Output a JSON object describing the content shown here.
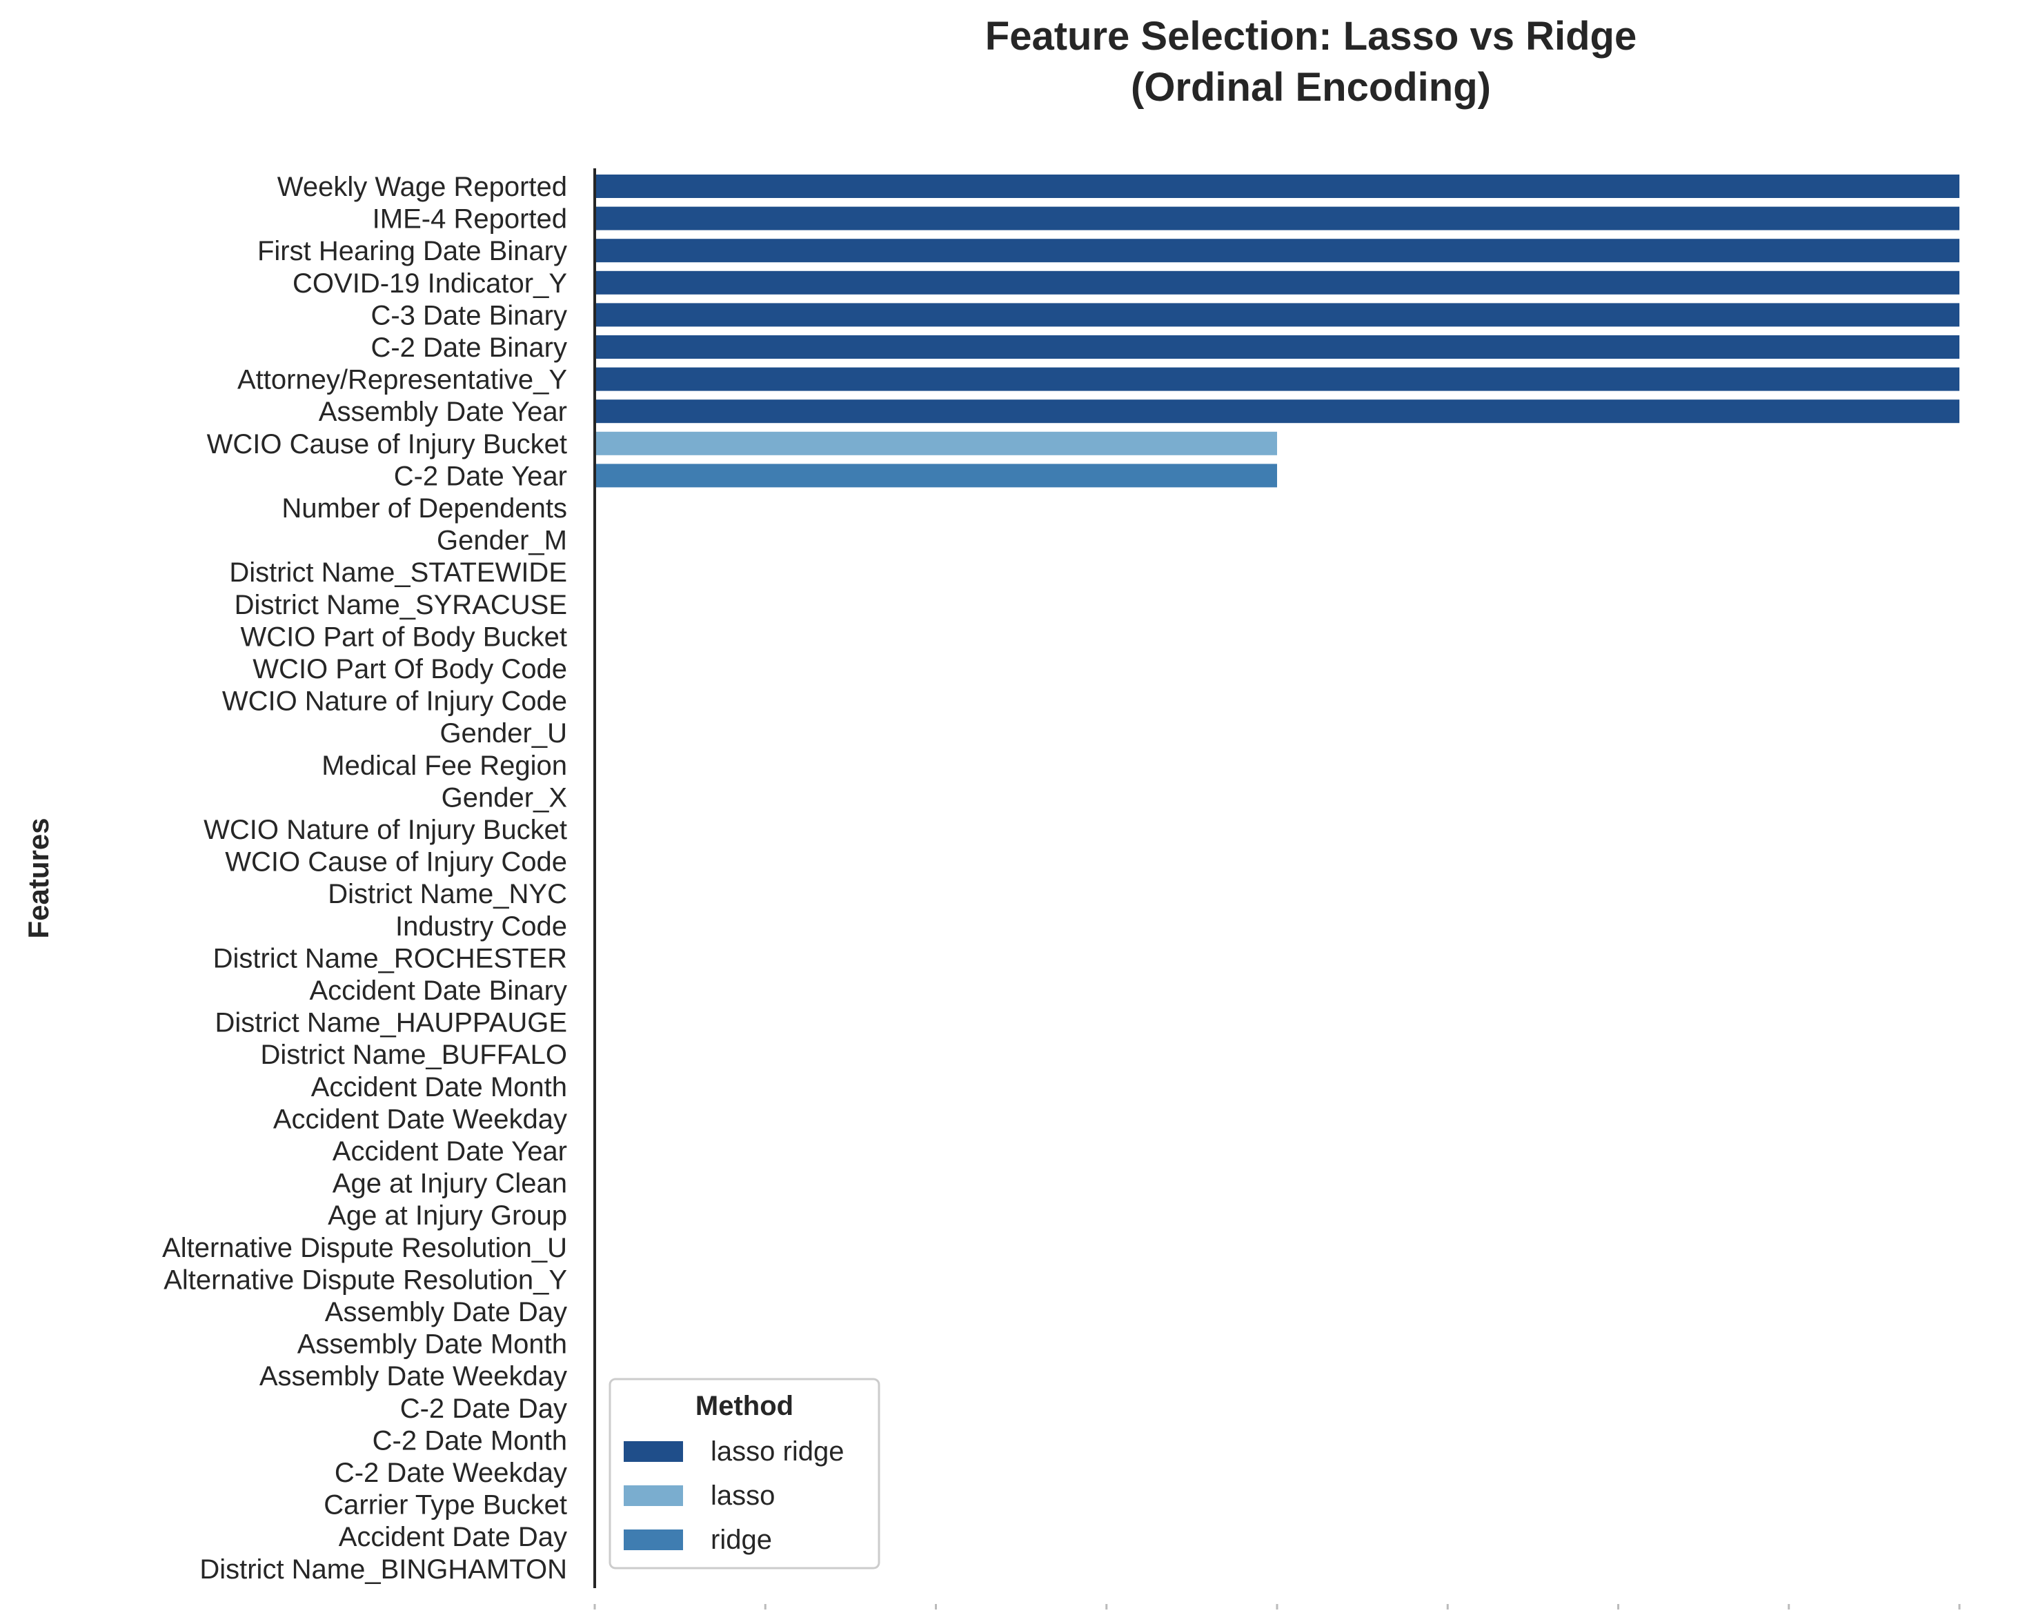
{
  "chart_data": {
    "type": "bar",
    "orientation": "horizontal",
    "title_line1": "Feature Selection: Lasso vs Ridge",
    "title_line2": "(Ordinal Encoding)",
    "xlabel": "",
    "ylabel": "Features",
    "xlim": [
      0,
      2
    ],
    "grid": false,
    "legend_placement": "lower-left",
    "legend_title": "Method",
    "series_colors": {
      "lasso ridge": "#1f4e8a",
      "lasso": "#7aadcf",
      "ridge": "#3f7db1"
    },
    "legend": [
      {
        "name": "lasso ridge",
        "color": "#1f4e8a"
      },
      {
        "name": "lasso",
        "color": "#7aadcf"
      },
      {
        "name": "ridge",
        "color": "#3f7db1"
      }
    ],
    "categories": [
      "Weekly Wage Reported",
      "IME-4 Reported",
      "First Hearing Date Binary",
      "COVID-19 Indicator_Y",
      "C-3 Date Binary",
      "C-2 Date Binary",
      "Attorney/Representative_Y",
      "Assembly Date Year",
      "WCIO Cause of Injury Bucket",
      "C-2 Date Year",
      "Number of Dependents",
      "Gender_M",
      "District Name_STATEWIDE",
      "District Name_SYRACUSE",
      "WCIO Part of Body Bucket",
      "WCIO Part Of Body Code",
      "WCIO Nature of Injury Code",
      "Gender_U",
      "Medical Fee Region",
      "Gender_X",
      "WCIO Nature of Injury Bucket",
      "WCIO Cause of Injury Code",
      "District Name_NYC",
      "Industry Code",
      "District Name_ROCHESTER",
      "Accident Date Binary",
      "District Name_HAUPPAUGE",
      "District Name_BUFFALO",
      "Accident Date Month",
      "Accident Date Weekday",
      "Accident Date Year",
      "Age at Injury Clean",
      "Age at Injury Group",
      "Alternative Dispute Resolution_U",
      "Alternative Dispute Resolution_Y",
      "Assembly Date Day",
      "Assembly Date Month",
      "Assembly Date Weekday",
      "C-2 Date Day",
      "C-2 Date Month",
      "C-2 Date Weekday",
      "Carrier Type Bucket",
      "Accident Date Day",
      "District Name_BINGHAMTON"
    ],
    "values": [
      2,
      2,
      2,
      2,
      2,
      2,
      2,
      2,
      1,
      1,
      0,
      0,
      0,
      0,
      0,
      0,
      0,
      0,
      0,
      0,
      0,
      0,
      0,
      0,
      0,
      0,
      0,
      0,
      0,
      0,
      0,
      0,
      0,
      0,
      0,
      0,
      0,
      0,
      0,
      0,
      0,
      0,
      0,
      0
    ],
    "methods": [
      "lasso ridge",
      "lasso ridge",
      "lasso ridge",
      "lasso ridge",
      "lasso ridge",
      "lasso ridge",
      "lasso ridge",
      "lasso ridge",
      "lasso",
      "ridge",
      "",
      "",
      "",
      "",
      "",
      "",
      "",
      "",
      "",
      "",
      "",
      "",
      "",
      "",
      "",
      "",
      "",
      "",
      "",
      "",
      "",
      "",
      "",
      "",
      "",
      "",
      "",
      "",
      "",
      "",
      "",
      "",
      "",
      ""
    ]
  }
}
